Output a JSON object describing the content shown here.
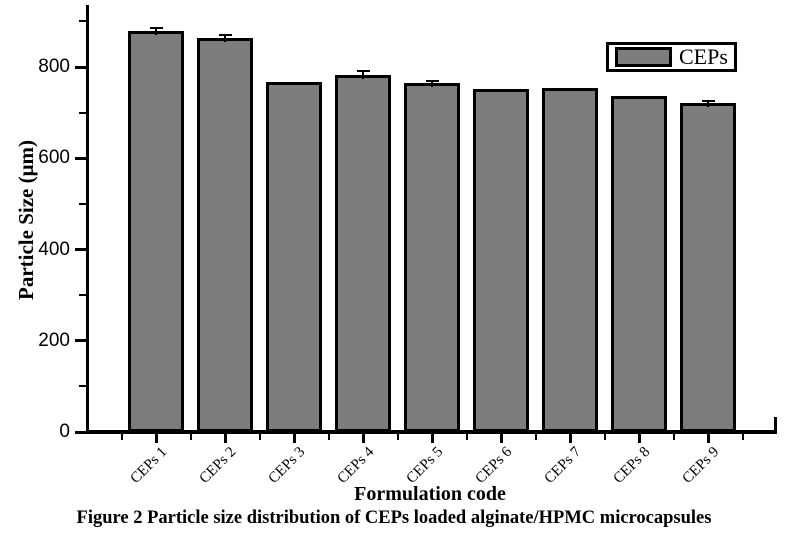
{
  "figure": {
    "caption": "Figure 2 Particle size distribution of CEPs loaded alginate/HPMC microcapsules"
  },
  "chart_data": {
    "type": "bar",
    "title": "",
    "xlabel": "Formulation code",
    "ylabel": "Particle Size (μm)",
    "categories": [
      "CEPs 1",
      "CEPs 2",
      "CEPs 3",
      "CEPs 4",
      "CEPs 5",
      "CEPs 6",
      "CEPs 7",
      "CEPs 8",
      "CEPs 9"
    ],
    "series": [
      {
        "name": "CEPs",
        "values": [
          878,
          864,
          768,
          782,
          765,
          752,
          754,
          736,
          721
        ],
        "errors": [
          6,
          4,
          0,
          7,
          3,
          0,
          0,
          0,
          3
        ]
      }
    ],
    "ylim": [
      0,
      940
    ],
    "y_major_ticks": [
      0,
      200,
      400,
      600,
      800
    ],
    "y_minor_ticks": [
      100,
      300,
      500,
      700,
      900
    ],
    "legend": {
      "entries": [
        "CEPs"
      ],
      "position": "top-right"
    },
    "grid": false,
    "bar_color": "#7d7d7d",
    "bar_border_color": "#000000"
  }
}
